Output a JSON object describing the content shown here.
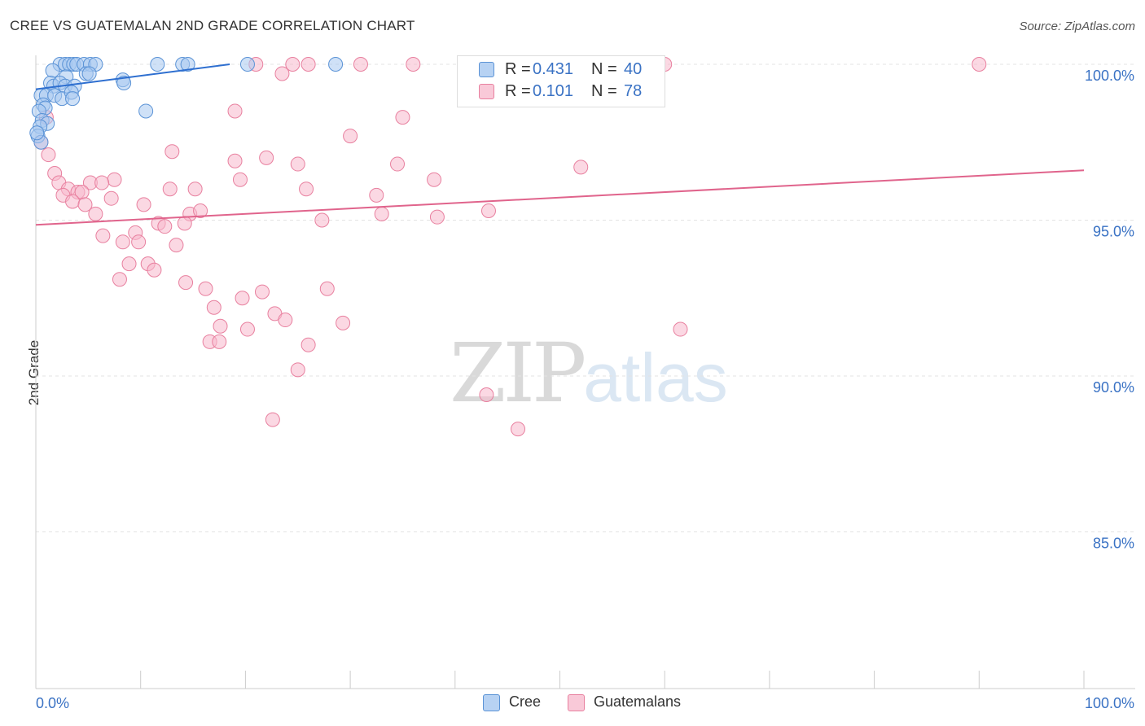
{
  "header": {
    "title": "CREE VS GUATEMALAN 2ND GRADE CORRELATION CHART",
    "source": "Source: ZipAtlas.com"
  },
  "watermark": {
    "zip": "ZIP",
    "atlas": "atlas"
  },
  "stats": {
    "cree": {
      "r_key": "R =",
      "r": "0.431",
      "n_key": "N =",
      "n": "40"
    },
    "guatemalans": {
      "r_key": "R =",
      "r": "0.101",
      "n_key": "N =",
      "n": "78"
    }
  },
  "legend": {
    "cree": "Cree",
    "guatemalans": "Guatemalans"
  },
  "colors": {
    "cree_fill": "#a8c8f0",
    "cree_stroke": "#5b93d6",
    "cree_line": "#2e6fd0",
    "guat_fill": "#f7b8cc",
    "guat_stroke": "#e8809f",
    "guat_line": "#e0648c",
    "value_text": "#3a72c4",
    "grid": "#e3e3e3"
  },
  "chart_data": {
    "type": "scatter",
    "title": "CREE VS GUATEMALAN 2ND GRADE CORRELATION CHART",
    "xlabel": "",
    "ylabel": "2nd Grade",
    "xlim": [
      0,
      100
    ],
    "ylim": [
      80,
      100.5
    ],
    "x_tick_labels": [
      "0.0%",
      "100.0%"
    ],
    "y_ticks": [
      85,
      90,
      95,
      100
    ],
    "y_tick_labels": [
      "85.0%",
      "90.0%",
      "95.0%",
      "100.0%"
    ],
    "legend_position": "bottom-center",
    "series": [
      {
        "name": "Cree",
        "R": 0.431,
        "N": 40,
        "trend": {
          "x": [
            0,
            18.5
          ],
          "y": [
            99.2,
            100.0
          ]
        },
        "points": [
          {
            "x": 2.3,
            "y": 100.0
          },
          {
            "x": 2.8,
            "y": 100.0
          },
          {
            "x": 3.2,
            "y": 100.0
          },
          {
            "x": 3.6,
            "y": 100.0
          },
          {
            "x": 3.9,
            "y": 100.0
          },
          {
            "x": 4.6,
            "y": 100.0
          },
          {
            "x": 5.2,
            "y": 100.0
          },
          {
            "x": 5.7,
            "y": 100.0
          },
          {
            "x": 11.6,
            "y": 100.0
          },
          {
            "x": 14.0,
            "y": 100.0
          },
          {
            "x": 14.5,
            "y": 100.0
          },
          {
            "x": 20.2,
            "y": 100.0
          },
          {
            "x": 28.6,
            "y": 100.0
          },
          {
            "x": 1.6,
            "y": 99.8
          },
          {
            "x": 2.9,
            "y": 99.6
          },
          {
            "x": 4.8,
            "y": 99.7
          },
          {
            "x": 5.1,
            "y": 99.7
          },
          {
            "x": 8.3,
            "y": 99.5
          },
          {
            "x": 8.4,
            "y": 99.4
          },
          {
            "x": 1.4,
            "y": 99.4
          },
          {
            "x": 1.7,
            "y": 99.3
          },
          {
            "x": 2.3,
            "y": 99.4
          },
          {
            "x": 2.8,
            "y": 99.3
          },
          {
            "x": 3.7,
            "y": 99.3
          },
          {
            "x": 0.5,
            "y": 99.0
          },
          {
            "x": 1.0,
            "y": 99.0
          },
          {
            "x": 1.8,
            "y": 99.0
          },
          {
            "x": 2.5,
            "y": 98.9
          },
          {
            "x": 3.4,
            "y": 99.1
          },
          {
            "x": 3.5,
            "y": 98.9
          },
          {
            "x": 0.7,
            "y": 98.7
          },
          {
            "x": 0.9,
            "y": 98.6
          },
          {
            "x": 10.5,
            "y": 98.5
          },
          {
            "x": 0.3,
            "y": 98.5
          },
          {
            "x": 0.6,
            "y": 98.2
          },
          {
            "x": 1.1,
            "y": 98.1
          },
          {
            "x": 0.4,
            "y": 98.0
          },
          {
            "x": 0.2,
            "y": 97.7
          },
          {
            "x": 0.5,
            "y": 97.5
          },
          {
            "x": 0.1,
            "y": 97.8
          }
        ]
      },
      {
        "name": "Guatemalans",
        "R": 0.101,
        "N": 78,
        "trend": {
          "x": [
            0,
            100
          ],
          "y": [
            94.85,
            96.6
          ]
        },
        "points": [
          {
            "x": 21.0,
            "y": 100.0
          },
          {
            "x": 24.5,
            "y": 100.0
          },
          {
            "x": 26.0,
            "y": 100.0
          },
          {
            "x": 31.0,
            "y": 100.0
          },
          {
            "x": 36.0,
            "y": 100.0
          },
          {
            "x": 58.0,
            "y": 100.0
          },
          {
            "x": 60.0,
            "y": 100.0
          },
          {
            "x": 90.0,
            "y": 100.0
          },
          {
            "x": 23.5,
            "y": 99.7
          },
          {
            "x": 19.0,
            "y": 98.5
          },
          {
            "x": 35.0,
            "y": 98.3
          },
          {
            "x": 30.0,
            "y": 97.7
          },
          {
            "x": 1.0,
            "y": 98.3
          },
          {
            "x": 0.5,
            "y": 97.5
          },
          {
            "x": 1.2,
            "y": 97.1
          },
          {
            "x": 13.0,
            "y": 97.2
          },
          {
            "x": 22.0,
            "y": 97.0
          },
          {
            "x": 19.0,
            "y": 96.9
          },
          {
            "x": 25.0,
            "y": 96.8
          },
          {
            "x": 34.5,
            "y": 96.8
          },
          {
            "x": 52.0,
            "y": 96.7
          },
          {
            "x": 1.8,
            "y": 96.5
          },
          {
            "x": 7.5,
            "y": 96.3
          },
          {
            "x": 19.5,
            "y": 96.3
          },
          {
            "x": 38.0,
            "y": 96.3
          },
          {
            "x": 2.2,
            "y": 96.2
          },
          {
            "x": 5.2,
            "y": 96.2
          },
          {
            "x": 6.3,
            "y": 96.2
          },
          {
            "x": 12.8,
            "y": 96.0
          },
          {
            "x": 15.2,
            "y": 96.0
          },
          {
            "x": 25.8,
            "y": 96.0
          },
          {
            "x": 3.1,
            "y": 96.0
          },
          {
            "x": 4.0,
            "y": 95.9
          },
          {
            "x": 4.4,
            "y": 95.9
          },
          {
            "x": 2.6,
            "y": 95.8
          },
          {
            "x": 7.2,
            "y": 95.7
          },
          {
            "x": 32.5,
            "y": 95.8
          },
          {
            "x": 3.5,
            "y": 95.6
          },
          {
            "x": 4.7,
            "y": 95.5
          },
          {
            "x": 10.3,
            "y": 95.5
          },
          {
            "x": 5.7,
            "y": 95.2
          },
          {
            "x": 14.7,
            "y": 95.2
          },
          {
            "x": 15.7,
            "y": 95.3
          },
          {
            "x": 33.0,
            "y": 95.2
          },
          {
            "x": 38.3,
            "y": 95.1
          },
          {
            "x": 43.2,
            "y": 95.3
          },
          {
            "x": 11.7,
            "y": 94.9
          },
          {
            "x": 12.3,
            "y": 94.8
          },
          {
            "x": 14.2,
            "y": 94.9
          },
          {
            "x": 27.3,
            "y": 95.0
          },
          {
            "x": 9.5,
            "y": 94.6
          },
          {
            "x": 6.4,
            "y": 94.5
          },
          {
            "x": 8.3,
            "y": 94.3
          },
          {
            "x": 9.8,
            "y": 94.3
          },
          {
            "x": 13.4,
            "y": 94.2
          },
          {
            "x": 8.9,
            "y": 93.6
          },
          {
            "x": 10.7,
            "y": 93.6
          },
          {
            "x": 11.3,
            "y": 93.4
          },
          {
            "x": 8.0,
            "y": 93.1
          },
          {
            "x": 14.3,
            "y": 93.0
          },
          {
            "x": 16.2,
            "y": 92.8
          },
          {
            "x": 21.6,
            "y": 92.7
          },
          {
            "x": 27.8,
            "y": 92.8
          },
          {
            "x": 19.7,
            "y": 92.5
          },
          {
            "x": 17.0,
            "y": 92.2
          },
          {
            "x": 22.8,
            "y": 92.0
          },
          {
            "x": 23.8,
            "y": 91.8
          },
          {
            "x": 29.3,
            "y": 91.7
          },
          {
            "x": 17.6,
            "y": 91.6
          },
          {
            "x": 20.2,
            "y": 91.5
          },
          {
            "x": 61.5,
            "y": 91.5
          },
          {
            "x": 16.6,
            "y": 91.1
          },
          {
            "x": 17.5,
            "y": 91.1
          },
          {
            "x": 26.0,
            "y": 91.0
          },
          {
            "x": 25.0,
            "y": 90.2
          },
          {
            "x": 43.0,
            "y": 89.4
          },
          {
            "x": 22.6,
            "y": 88.6
          },
          {
            "x": 46.0,
            "y": 88.3
          }
        ]
      }
    ]
  }
}
